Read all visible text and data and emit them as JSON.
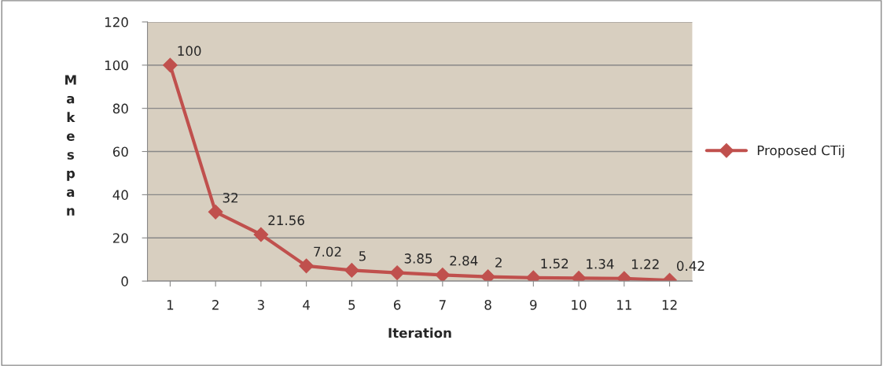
{
  "chart_data": {
    "type": "line",
    "xlabel": "Iteration",
    "ylabel": "Makespan",
    "categories": [
      "1",
      "2",
      "3",
      "4",
      "5",
      "6",
      "7",
      "8",
      "9",
      "10",
      "11",
      "12"
    ],
    "series": [
      {
        "name": "Proposed CTij",
        "color": "#c0504d",
        "values": [
          100,
          32,
          21.56,
          7.02,
          5,
          3.85,
          2.84,
          2,
          1.52,
          1.34,
          1.22,
          0.42
        ]
      }
    ],
    "ylim": [
      0,
      120
    ],
    "yticks": [
      0,
      20,
      40,
      60,
      80,
      100,
      120
    ],
    "grid": "y",
    "legend": "right",
    "marker": "diamond",
    "data_labels": true
  }
}
